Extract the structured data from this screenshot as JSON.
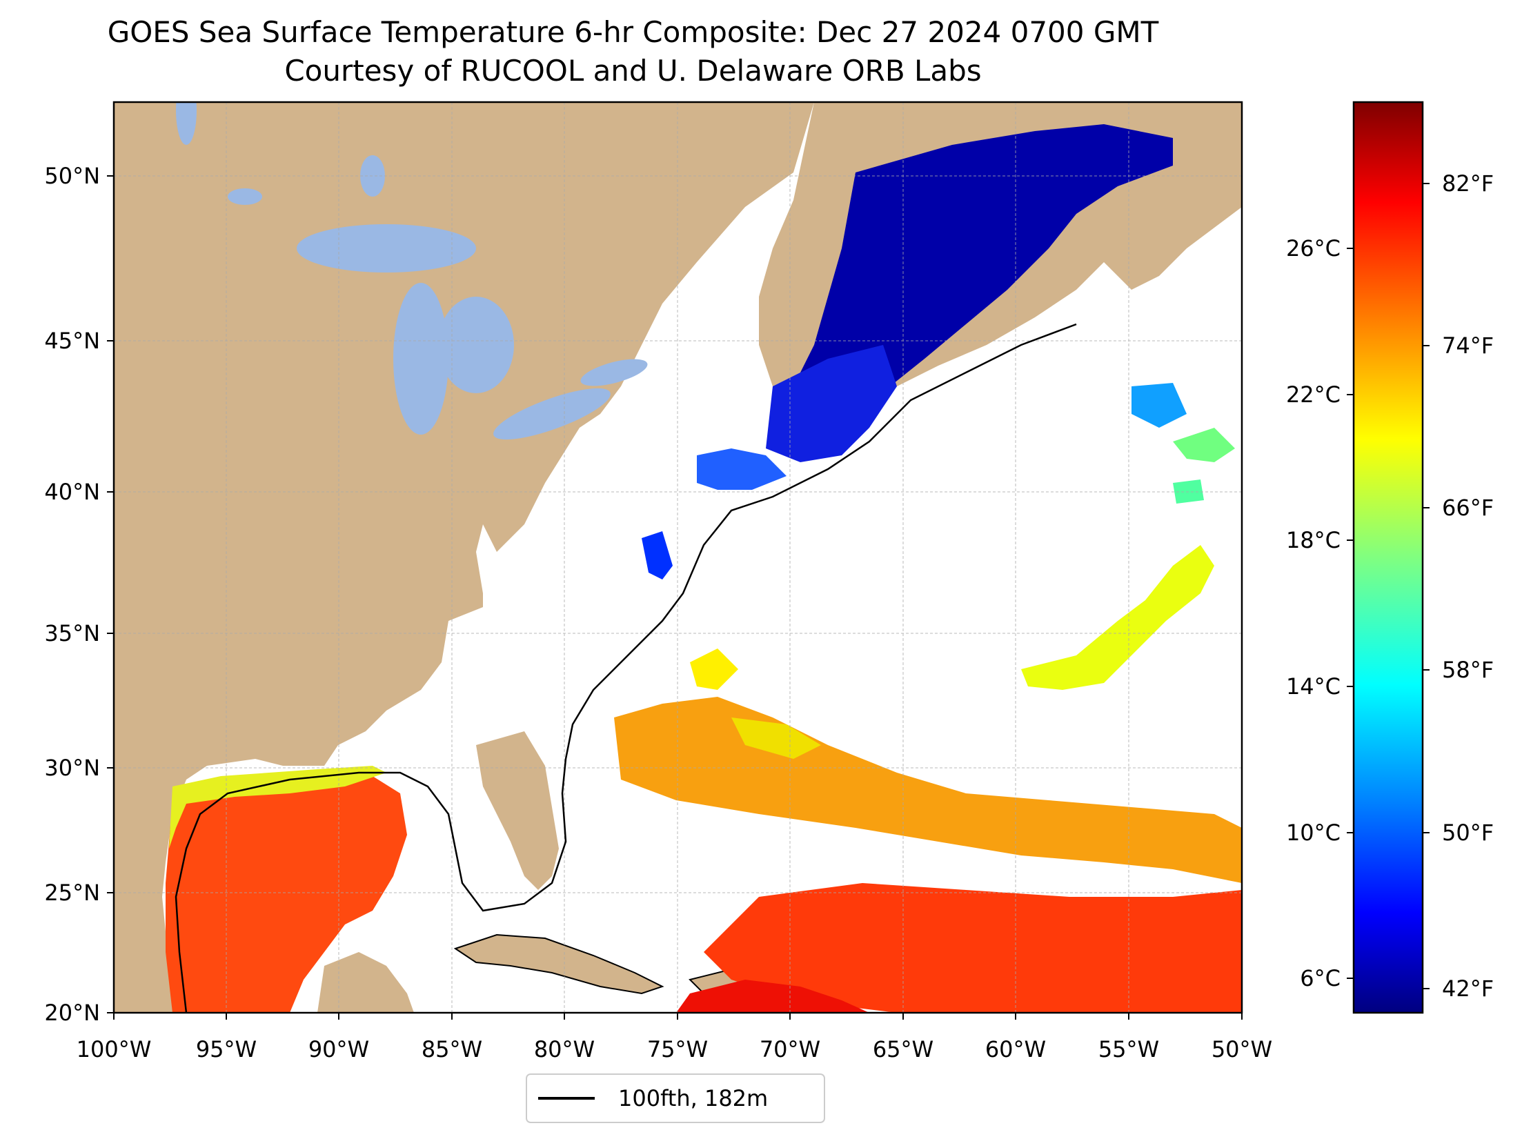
{
  "title": {
    "line1": "GOES Sea Surface Temperature 6-hr Composite: Dec 27 2024 0700 GMT",
    "line2": "Courtesy of RUCOOL and U. Delaware ORB Labs"
  },
  "map": {
    "lon_range": [
      -100,
      -50
    ],
    "lat_range": [
      20,
      52.2
    ],
    "land_color": "#d2b48c",
    "lake_color": "#9ab8e4",
    "ocean_nodata_color": "#ffffff",
    "lat_ticks": [
      "20°N",
      "25°N",
      "30°N",
      "35°N",
      "40°N",
      "45°N",
      "50°N"
    ],
    "lon_ticks": [
      "100°W",
      "95°W",
      "90°W",
      "85°W",
      "80°W",
      "75°W",
      "70°W",
      "65°W",
      "60°W",
      "55°W",
      "50°W"
    ],
    "gridlines": true
  },
  "colorbar": {
    "colormap": "jet",
    "celsius_ticks": [
      "6°C",
      "10°C",
      "14°C",
      "18°C",
      "22°C",
      "26°C"
    ],
    "fahrenheit_ticks": [
      "42°F",
      "50°F",
      "58°F",
      "66°F",
      "74°F",
      "82°F"
    ],
    "stops": [
      "#00007f",
      "#0000ff",
      "#0080ff",
      "#00ffff",
      "#80ff80",
      "#ffff00",
      "#ff8000",
      "#ff0000",
      "#7f0000"
    ]
  },
  "legend": {
    "label": "100fth, 182m",
    "line_color": "#000000"
  }
}
